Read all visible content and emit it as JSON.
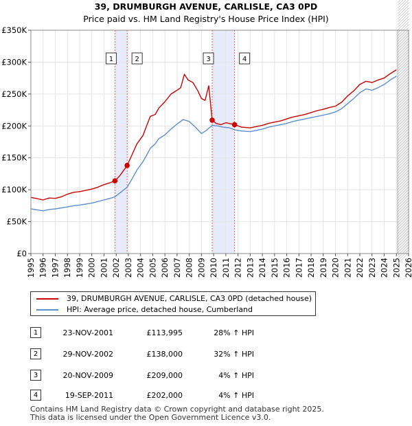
{
  "chart_data": {
    "type": "line",
    "title": "39, DRUMBURGH AVENUE, CARLISLE, CA3 0PD",
    "subtitle": "Price paid vs. HM Land Registry's House Price Index (HPI)",
    "xlim": [
      1995,
      2026
    ],
    "ylim": [
      0,
      350000
    ],
    "x_ticks": [
      1995,
      1996,
      1997,
      1998,
      1999,
      2000,
      2001,
      2002,
      2003,
      2004,
      2005,
      2006,
      2007,
      2008,
      2009,
      2010,
      2011,
      2012,
      2013,
      2014,
      2015,
      2016,
      2017,
      2018,
      2019,
      2020,
      2021,
      2022,
      2023,
      2024,
      2025,
      2026
    ],
    "y_ticks": [
      {
        "value": 0,
        "label": "£0"
      },
      {
        "value": 50000,
        "label": "£50K"
      },
      {
        "value": 100000,
        "label": "£100K"
      },
      {
        "value": 150000,
        "label": "£150K"
      },
      {
        "value": 200000,
        "label": "£200K"
      },
      {
        "value": 250000,
        "label": "£250K"
      },
      {
        "value": 300000,
        "label": "£300K"
      },
      {
        "value": 350000,
        "label": "£350K"
      }
    ],
    "grid": true,
    "forecast_from": 2025.1,
    "sale_bands": [
      [
        2001.9,
        2002.9
      ],
      [
        2009.88,
        2011.72
      ]
    ],
    "series": [
      {
        "name": "39, DRUMBURGH AVENUE, CARLISLE, CA3 0PD (detached house)",
        "color": "#cc0000",
        "points": [
          [
            1995,
            88000
          ],
          [
            1995.5,
            86000
          ],
          [
            1996,
            84000
          ],
          [
            1996.5,
            87000
          ],
          [
            1997,
            86500
          ],
          [
            1997.5,
            89000
          ],
          [
            1998,
            93000
          ],
          [
            1998.5,
            96000
          ],
          [
            1999,
            97000
          ],
          [
            1999.5,
            99000
          ],
          [
            2000,
            101000
          ],
          [
            2000.5,
            104000
          ],
          [
            2001,
            108000
          ],
          [
            2001.5,
            111000
          ],
          [
            2001.9,
            113995
          ],
          [
            2002.3,
            122000
          ],
          [
            2002.9,
            138000
          ],
          [
            2003.3,
            155000
          ],
          [
            2003.7,
            172000
          ],
          [
            2004.2,
            185000
          ],
          [
            2004.5,
            200000
          ],
          [
            2004.8,
            215000
          ],
          [
            2005.2,
            218000
          ],
          [
            2005.5,
            228000
          ],
          [
            2006,
            238000
          ],
          [
            2006.5,
            250000
          ],
          [
            2007,
            256000
          ],
          [
            2007.3,
            260000
          ],
          [
            2007.6,
            281000
          ],
          [
            2007.9,
            272000
          ],
          [
            2008.3,
            268000
          ],
          [
            2008.7,
            255000
          ],
          [
            2009,
            243000
          ],
          [
            2009.3,
            240000
          ],
          [
            2009.6,
            263000
          ],
          [
            2009.88,
            209000
          ],
          [
            2010.2,
            204000
          ],
          [
            2010.6,
            202000
          ],
          [
            2011,
            205000
          ],
          [
            2011.72,
            202000
          ],
          [
            2012.3,
            198000
          ],
          [
            2013,
            197000
          ],
          [
            2013.5,
            199000
          ],
          [
            2014,
            201000
          ],
          [
            2014.5,
            204000
          ],
          [
            2015,
            206000
          ],
          [
            2015.5,
            208000
          ],
          [
            2016,
            211000
          ],
          [
            2016.5,
            214000
          ],
          [
            2017,
            216000
          ],
          [
            2017.5,
            218000
          ],
          [
            2018,
            221000
          ],
          [
            2018.5,
            224000
          ],
          [
            2019,
            226000
          ],
          [
            2019.5,
            229000
          ],
          [
            2020,
            231000
          ],
          [
            2020.5,
            237000
          ],
          [
            2021,
            247000
          ],
          [
            2021.5,
            255000
          ],
          [
            2022,
            265000
          ],
          [
            2022.5,
            270000
          ],
          [
            2023,
            268000
          ],
          [
            2023.5,
            272000
          ],
          [
            2024,
            275000
          ],
          [
            2024.5,
            282000
          ],
          [
            2025,
            288000
          ]
        ]
      },
      {
        "name": "HPI: Average price, detached house, Cumberland",
        "color": "#5b8fd0",
        "points": [
          [
            1995,
            70000
          ],
          [
            1995.5,
            68500
          ],
          [
            1996,
            67000
          ],
          [
            1996.5,
            69000
          ],
          [
            1997,
            70000
          ],
          [
            1997.5,
            71500
          ],
          [
            1998,
            73000
          ],
          [
            1998.5,
            75000
          ],
          [
            1999,
            76000
          ],
          [
            1999.5,
            77500
          ],
          [
            2000,
            79000
          ],
          [
            2000.5,
            81500
          ],
          [
            2001,
            84000
          ],
          [
            2001.5,
            86500
          ],
          [
            2001.9,
            89000
          ],
          [
            2002.3,
            95000
          ],
          [
            2002.9,
            104000
          ],
          [
            2003.3,
            117000
          ],
          [
            2003.7,
            131000
          ],
          [
            2004.2,
            144000
          ],
          [
            2004.5,
            154000
          ],
          [
            2004.8,
            165000
          ],
          [
            2005.2,
            172000
          ],
          [
            2005.5,
            180000
          ],
          [
            2006,
            186000
          ],
          [
            2006.5,
            195000
          ],
          [
            2007,
            203000
          ],
          [
            2007.5,
            210000
          ],
          [
            2008,
            207000
          ],
          [
            2008.5,
            198000
          ],
          [
            2009,
            188000
          ],
          [
            2009.4,
            193000
          ],
          [
            2009.88,
            201000
          ],
          [
            2010.3,
            200000
          ],
          [
            2010.8,
            198000
          ],
          [
            2011.3,
            197000
          ],
          [
            2011.72,
            194000
          ],
          [
            2012.3,
            192000
          ],
          [
            2013,
            191000
          ],
          [
            2013.5,
            193000
          ],
          [
            2014,
            195000
          ],
          [
            2014.5,
            198000
          ],
          [
            2015,
            200000
          ],
          [
            2015.5,
            202000
          ],
          [
            2016,
            204000
          ],
          [
            2016.5,
            207000
          ],
          [
            2017,
            209000
          ],
          [
            2017.5,
            211000
          ],
          [
            2018,
            213000
          ],
          [
            2018.5,
            215000
          ],
          [
            2019,
            217000
          ],
          [
            2019.5,
            219000
          ],
          [
            2020,
            222000
          ],
          [
            2020.5,
            227000
          ],
          [
            2021,
            235000
          ],
          [
            2021.5,
            243000
          ],
          [
            2022,
            252000
          ],
          [
            2022.5,
            258000
          ],
          [
            2023,
            256000
          ],
          [
            2023.5,
            260000
          ],
          [
            2024,
            265000
          ],
          [
            2024.5,
            272000
          ],
          [
            2025,
            278000
          ]
        ]
      }
    ],
    "sales": [
      {
        "num": "1",
        "x": 2001.9,
        "price": 113995
      },
      {
        "num": "2",
        "x": 2002.9,
        "price": 138000
      },
      {
        "num": "3",
        "x": 2009.88,
        "price": 209000
      },
      {
        "num": "4",
        "x": 2011.72,
        "price": 202000
      }
    ]
  },
  "legend": [
    {
      "label": "39, DRUMBURGH AVENUE, CARLISLE, CA3 0PD (detached house)",
      "color": "#cc0000"
    },
    {
      "label": "HPI: Average price, detached house, Cumberland",
      "color": "#5b8fd0"
    }
  ],
  "transactions": [
    {
      "num": "1",
      "date": "23-NOV-2001",
      "price": "£113,995",
      "hpi": "28% ↑ HPI"
    },
    {
      "num": "2",
      "date": "29-NOV-2002",
      "price": "£138,000",
      "hpi": "32% ↑ HPI"
    },
    {
      "num": "3",
      "date": "20-NOV-2009",
      "price": "£209,000",
      "hpi": "4% ↑ HPI"
    },
    {
      "num": "4",
      "date": "19-SEP-2011",
      "price": "£202,000",
      "hpi": "4% ↑ HPI"
    }
  ],
  "footer": {
    "line1": "Contains HM Land Registry data © Crown copyright and database right 2025.",
    "line2": "This data is licensed under the Open Government Licence v3.0."
  }
}
